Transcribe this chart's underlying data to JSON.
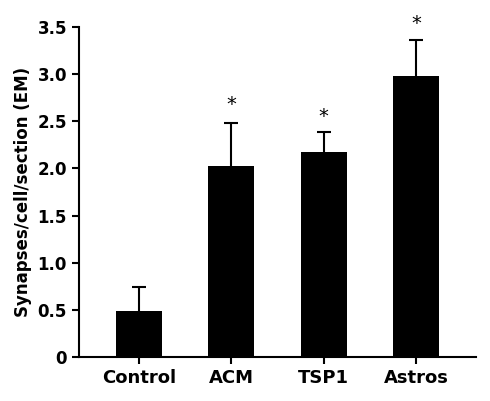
{
  "categories": [
    "Control",
    "ACM",
    "TSP1",
    "Astros"
  ],
  "values": [
    0.49,
    2.03,
    2.17,
    2.98
  ],
  "errors": [
    0.25,
    0.45,
    0.22,
    0.38
  ],
  "bar_color": "#000000",
  "background_color": "#ffffff",
  "ylabel": "Synapses/cell/section (EM)",
  "ylim": [
    0,
    3.5
  ],
  "yticks": [
    0,
    0.5,
    1.0,
    1.5,
    2.0,
    2.5,
    3.0,
    3.5
  ],
  "ytick_labels": [
    "0",
    "0.5",
    "1.0",
    "1.5",
    "2.0",
    "2.5",
    "3.0",
    "3.5"
  ],
  "significance": [
    false,
    true,
    true,
    true
  ],
  "star_offsets": [
    0.05,
    0.1,
    0.06,
    0.07
  ],
  "bar_width": 0.5,
  "ylabel_fontsize": 12,
  "tick_fontsize": 12,
  "xlabel_fontsize": 13
}
